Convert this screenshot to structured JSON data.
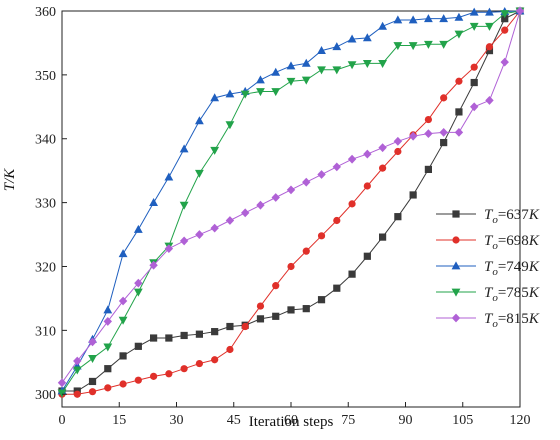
{
  "chart_data": {
    "type": "line",
    "xlabel": "Iteration steps",
    "ylabel": "T/K",
    "xlim": [
      0,
      120
    ],
    "ylim": [
      298,
      360
    ],
    "x_ticks": [
      0,
      15,
      30,
      45,
      60,
      75,
      90,
      105,
      120
    ],
    "y_ticks": [
      300,
      310,
      320,
      330,
      340,
      350,
      360
    ],
    "grid": false,
    "legend_position": "right",
    "series": [
      {
        "name": "T_o=637K",
        "label_sub": "o",
        "label_rest": "=637",
        "label_unit": "K",
        "color": "#3a3a3a",
        "marker": "square",
        "x": [
          0,
          4,
          8,
          12,
          16,
          20,
          24,
          28,
          32,
          36,
          40,
          44,
          48,
          52,
          56,
          60,
          64,
          68,
          72,
          76,
          80,
          84,
          88,
          92,
          96,
          100,
          104,
          108,
          112,
          116,
          120
        ],
        "y": [
          300.5,
          300.5,
          302,
          304,
          306,
          307.5,
          308.8,
          308.8,
          309.2,
          309.4,
          309.8,
          310.6,
          310.8,
          311.8,
          312.2,
          313.2,
          313.4,
          314.8,
          316.6,
          318.8,
          321.6,
          324.6,
          327.8,
          331.2,
          335.2,
          339.4,
          344.2,
          348.8,
          353.8,
          358.8,
          360
        ]
      },
      {
        "name": "T_o=698K",
        "label_sub": "o",
        "label_rest": "=698",
        "label_unit": "K",
        "color": "#e0302a",
        "marker": "circle",
        "x": [
          0,
          4,
          8,
          12,
          16,
          20,
          24,
          28,
          32,
          36,
          40,
          44,
          48,
          52,
          56,
          60,
          64,
          68,
          72,
          76,
          80,
          84,
          88,
          92,
          96,
          100,
          104,
          108,
          112,
          116,
          120
        ],
        "y": [
          300,
          300,
          300.4,
          301,
          301.6,
          302.2,
          302.8,
          303.2,
          304,
          304.8,
          305.4,
          307,
          310.6,
          313.8,
          317,
          320,
          322.4,
          324.8,
          327.2,
          329.8,
          332.6,
          335.4,
          338,
          340.6,
          343,
          346.4,
          349,
          351.2,
          354.4,
          357,
          360
        ]
      },
      {
        "name": "T_o=749K",
        "label_sub": "o",
        "label_rest": "=749",
        "label_unit": "K",
        "color": "#1f5fbf",
        "marker": "triangle-up",
        "x": [
          0,
          4,
          8,
          12,
          16,
          20,
          24,
          28,
          32,
          36,
          40,
          44,
          48,
          52,
          56,
          60,
          64,
          68,
          72,
          76,
          80,
          84,
          88,
          92,
          96,
          100,
          104,
          108,
          112,
          116,
          120
        ],
        "y": [
          300.5,
          304.4,
          308.6,
          313.2,
          322,
          325.8,
          330,
          334,
          338.4,
          342.8,
          346.4,
          347,
          347.4,
          349.2,
          350.4,
          351.4,
          351.8,
          353.8,
          354.4,
          355.6,
          355.8,
          357.6,
          358.6,
          358.6,
          358.8,
          358.8,
          359,
          359.8,
          359.8,
          359.9,
          360
        ]
      },
      {
        "name": "T_o=785K",
        "label_sub": "o",
        "label_rest": "=785",
        "label_unit": "K",
        "color": "#22a34a",
        "marker": "triangle-down",
        "x": [
          0,
          4,
          8,
          12,
          16,
          20,
          24,
          28,
          32,
          36,
          40,
          44,
          48,
          52,
          56,
          60,
          64,
          68,
          72,
          76,
          80,
          84,
          88,
          92,
          96,
          100,
          104,
          108,
          112,
          116,
          120
        ],
        "y": [
          300.2,
          303.8,
          305.6,
          307.4,
          311.6,
          316,
          320.6,
          323.2,
          329.6,
          334.6,
          338.2,
          342.2,
          347,
          347.4,
          347.4,
          349,
          349.2,
          350.8,
          350.8,
          351.6,
          351.8,
          351.8,
          354.6,
          354.6,
          354.8,
          354.8,
          356.4,
          357.6,
          357.6,
          359.6,
          360
        ]
      },
      {
        "name": "T_o=815K",
        "label_sub": "o",
        "label_rest": "=815",
        "label_unit": "K",
        "color": "#b061d6",
        "marker": "diamond",
        "x": [
          0,
          4,
          8,
          12,
          16,
          20,
          24,
          28,
          32,
          36,
          40,
          44,
          48,
          52,
          56,
          60,
          64,
          68,
          72,
          76,
          80,
          84,
          88,
          92,
          96,
          100,
          104,
          108,
          112,
          116,
          120
        ],
        "y": [
          301.8,
          305.2,
          308.2,
          311.4,
          314.6,
          317.4,
          320.2,
          322.8,
          324,
          325,
          326,
          327.2,
          328.4,
          329.6,
          330.8,
          332,
          333.2,
          334.4,
          335.6,
          336.8,
          337.6,
          338.6,
          339.6,
          340.4,
          340.8,
          341,
          341,
          345,
          346,
          352,
          360
        ]
      }
    ]
  }
}
